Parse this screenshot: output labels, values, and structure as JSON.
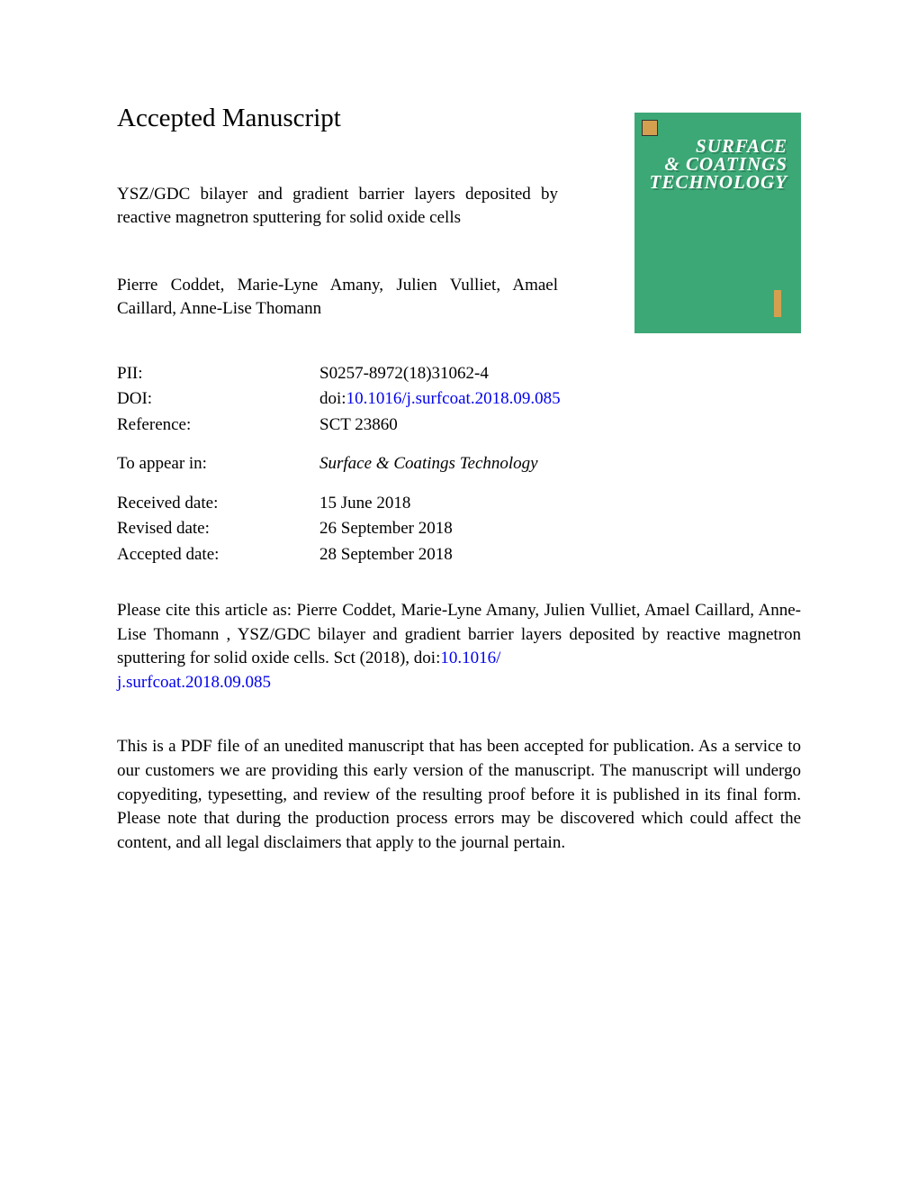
{
  "heading": "Accepted Manuscript",
  "article_title": "YSZ/GDC bilayer and gradient barrier layers deposited by reactive magnetron sputtering for solid oxide cells",
  "authors": "Pierre Coddet, Marie-Lyne Amany, Julien Vulliet, Amael Caillard, Anne-Lise Thomann",
  "cover": {
    "line1": "SURFACE",
    "line2": "& COATINGS",
    "line3": "TECHNOLOGY",
    "bg_color": "#3ca876"
  },
  "meta": {
    "pii_label": "PII:",
    "pii_value": "S0257-8972(18)31062-4",
    "doi_label": "DOI:",
    "doi_prefix": "doi:",
    "doi_link": "10.1016/j.surfcoat.2018.09.085",
    "ref_label": "Reference:",
    "ref_value": "SCT 23860",
    "appear_label": "To appear in:",
    "appear_value": "Surface & Coatings Technology",
    "received_label": "Received date:",
    "received_value": "15 June 2018",
    "revised_label": "Revised date:",
    "revised_value": "26 September 2018",
    "accepted_label": "Accepted date:",
    "accepted_value": "28 September 2018"
  },
  "citation": {
    "prefix": "Please cite this article as: Pierre Coddet, Marie-Lyne Amany, Julien Vulliet, Amael Caillard, Anne-Lise Thomann , YSZ/GDC bilayer and gradient barrier layers deposited by reactive magnetron sputtering for solid oxide cells. Sct (2018), doi:",
    "link1": "10.1016/",
    "link2": "j.surfcoat.2018.09.085"
  },
  "disclaimer": "This is a PDF file of an unedited manuscript that has been accepted for publication. As a service to our customers we are providing this early version of the manuscript. The manuscript will undergo copyediting, typesetting, and review of the resulting proof before it is published in its final form. Please note that during the production process errors may be discovered which could affect the content, and all legal disclaimers that apply to the journal pertain."
}
